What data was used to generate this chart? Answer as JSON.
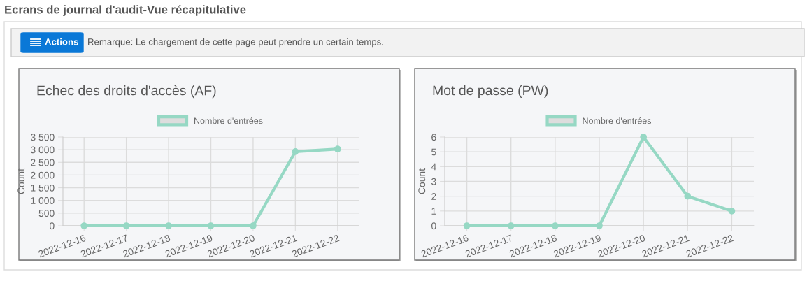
{
  "chart_data": [
    {
      "type": "line",
      "title": "Echec des droits d'accès (AF)",
      "ylabel": "Count",
      "annotations": [
        "Ecrans de journal d'audit-Vue récapitulative",
        "Actions",
        "Remarque: Le chargement de cette page peut prendre un certain temps."
      ],
      "categories": [
        "2022-12-16",
        "2022-12-17",
        "2022-12-18",
        "2022-12-19",
        "2022-12-20",
        "2022-12-21",
        "2022-12-22"
      ],
      "series": [
        {
          "name": "Nombre d'entrées",
          "color": "#96d8c4",
          "values": [
            0,
            0,
            0,
            0,
            0,
            2925,
            3025
          ]
        }
      ],
      "ylim": [
        0,
        3500
      ],
      "yticks": [
        0,
        {
          "value": 500,
          "label": "500"
        },
        {
          "value": 1000,
          "label": "1 000"
        },
        {
          "value": 1500,
          "label": "1 500"
        },
        {
          "value": 2000,
          "label": "2 000"
        },
        {
          "value": 2500,
          "label": "2 500"
        },
        {
          "value": 3000,
          "label": "3 000"
        },
        {
          "value": 3500,
          "label": "3 500"
        }
      ],
      "grid": true,
      "legend": "top",
      "marker": "circle",
      "line_style": "solid"
    },
    {
      "type": "line",
      "title": "Mot de passe (PW)",
      "ylabel": "Count",
      "categories": [
        "2022-12-16",
        "2022-12-17",
        "2022-12-18",
        "2022-12-19",
        "2022-12-20",
        "2022-12-21",
        "2022-12-22"
      ],
      "series": [
        {
          "name": "Nombre d'entrées",
          "color": "#96d8c4",
          "values": [
            0,
            0,
            0,
            0,
            6,
            2,
            1
          ]
        }
      ],
      "ylim": [
        0,
        6
      ],
      "yticks": [
        0,
        1,
        2,
        3,
        4,
        5,
        6
      ],
      "grid": true,
      "legend": "top",
      "marker": "circle",
      "line_style": "solid"
    }
  ]
}
